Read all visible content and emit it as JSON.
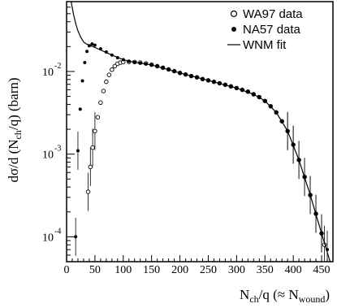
{
  "chart_data": {
    "type": "scatter",
    "x_axis": {
      "range": [
        0,
        470
      ],
      "ticks": [
        0,
        50,
        100,
        150,
        200,
        250,
        300,
        350,
        400,
        450
      ],
      "label_main": "N",
      "label_sub1": "ch",
      "label_mid": "/q (≈ N",
      "label_sub2": "wound",
      "label_end": ")"
    },
    "y_axis": {
      "scale": "log",
      "range": [
        5e-05,
        0.07
      ],
      "ticks": [
        {
          "base": "10",
          "exp": "-4",
          "value": 0.0001
        },
        {
          "base": "10",
          "exp": "-3",
          "value": 0.001
        },
        {
          "base": "10",
          "exp": "-2",
          "value": 0.01
        }
      ],
      "label_main": "dσ/d (N",
      "label_sub": "ch",
      "label_end": "/q) (barn)"
    },
    "legend": {
      "placement": "top-right",
      "entries": [
        {
          "label": "WA97 data",
          "marker": "open-circle"
        },
        {
          "label": "NA57 data",
          "marker": "filled-circle"
        },
        {
          "label": "WNM fit",
          "marker": "line"
        }
      ]
    },
    "series": [
      {
        "name": "WA97 data",
        "marker": "open-circle",
        "points": [
          [
            38,
            0.00035
          ],
          [
            42,
            0.0007
          ],
          [
            46,
            0.0012
          ],
          [
            50,
            0.0019
          ],
          [
            55,
            0.0028
          ],
          [
            60,
            0.0042
          ],
          [
            65,
            0.0058
          ],
          [
            70,
            0.0075
          ],
          [
            75,
            0.0091
          ],
          [
            80,
            0.0105
          ],
          [
            85,
            0.0116
          ],
          [
            90,
            0.0124
          ],
          [
            95,
            0.0128
          ],
          [
            100,
            0.013
          ],
          [
            110,
            0.0131
          ],
          [
            120,
            0.013
          ],
          [
            130,
            0.0128
          ],
          [
            140,
            0.0125
          ],
          [
            150,
            0.0121
          ],
          [
            160,
            0.0116
          ],
          [
            170,
            0.0111
          ],
          [
            180,
            0.0106
          ],
          [
            190,
            0.0101
          ],
          [
            200,
            0.0096
          ],
          [
            210,
            0.0092
          ],
          [
            220,
            0.0088
          ],
          [
            230,
            0.0085
          ],
          [
            240,
            0.0081
          ],
          [
            250,
            0.0078
          ],
          [
            260,
            0.0075
          ],
          [
            270,
            0.0072
          ],
          [
            280,
            0.0069
          ],
          [
            290,
            0.0066
          ],
          [
            300,
            0.0063
          ],
          [
            310,
            0.006
          ],
          [
            320,
            0.0057
          ],
          [
            330,
            0.0053
          ],
          [
            340,
            0.0049
          ],
          [
            350,
            0.0044
          ],
          [
            360,
            0.0038
          ],
          [
            370,
            0.0032
          ],
          [
            380,
            0.0025
          ],
          [
            390,
            0.0019
          ],
          [
            400,
            0.0013
          ],
          [
            410,
            0.00085
          ],
          [
            420,
            0.00053
          ],
          [
            430,
            0.00032
          ],
          [
            440,
            0.00019
          ],
          [
            450,
            0.00011
          ],
          [
            455,
            8e-05
          ]
        ]
      },
      {
        "name": "NA57 data",
        "marker": "filled-circle",
        "points": [
          [
            16,
            0.0001
          ],
          [
            20,
            0.0011
          ],
          [
            24,
            0.0035
          ],
          [
            28,
            0.0077
          ],
          [
            32,
            0.0128
          ],
          [
            36,
            0.0175
          ],
          [
            40,
            0.0205
          ],
          [
            45,
            0.0215
          ],
          [
            50,
            0.0208
          ],
          [
            60,
            0.0188
          ],
          [
            70,
            0.0172
          ],
          [
            80,
            0.0158
          ],
          [
            90,
            0.0147
          ],
          [
            100,
            0.0139
          ],
          [
            110,
            0.0133
          ],
          [
            120,
            0.0129
          ],
          [
            130,
            0.0126
          ],
          [
            140,
            0.0123
          ],
          [
            150,
            0.012
          ],
          [
            160,
            0.0116
          ],
          [
            170,
            0.0111
          ],
          [
            180,
            0.0106
          ],
          [
            190,
            0.0101
          ],
          [
            200,
            0.0096
          ],
          [
            210,
            0.0092
          ],
          [
            220,
            0.0088
          ],
          [
            230,
            0.0085
          ],
          [
            240,
            0.0081
          ],
          [
            250,
            0.0078
          ],
          [
            260,
            0.0075
          ],
          [
            270,
            0.0072
          ],
          [
            280,
            0.0069
          ],
          [
            290,
            0.0066
          ],
          [
            300,
            0.0063
          ],
          [
            310,
            0.006
          ],
          [
            320,
            0.0057
          ],
          [
            330,
            0.0053
          ],
          [
            340,
            0.0049
          ],
          [
            350,
            0.0044
          ],
          [
            360,
            0.0038
          ],
          [
            370,
            0.0032
          ],
          [
            380,
            0.0025
          ],
          [
            390,
            0.0019
          ],
          [
            400,
            0.0013
          ],
          [
            410,
            0.00085
          ],
          [
            420,
            0.00053
          ],
          [
            430,
            0.00032
          ],
          [
            440,
            0.00019
          ],
          [
            450,
            0.00011
          ],
          [
            460,
            7e-05
          ]
        ]
      },
      {
        "name": "WNM fit",
        "marker": "line",
        "points": [
          [
            8,
            0.07
          ],
          [
            12,
            0.05
          ],
          [
            16,
            0.038
          ],
          [
            20,
            0.031
          ],
          [
            25,
            0.026
          ],
          [
            30,
            0.0228
          ],
          [
            35,
            0.0215
          ],
          [
            40,
            0.0208
          ],
          [
            50,
            0.0195
          ],
          [
            60,
            0.0182
          ],
          [
            80,
            0.0158
          ],
          [
            100,
            0.0139
          ],
          [
            120,
            0.0129
          ],
          [
            150,
            0.012
          ],
          [
            200,
            0.0096
          ],
          [
            250,
            0.0078
          ],
          [
            300,
            0.0063
          ],
          [
            330,
            0.0053
          ],
          [
            350,
            0.0044
          ],
          [
            370,
            0.0032
          ],
          [
            390,
            0.0019
          ],
          [
            410,
            0.00085
          ],
          [
            430,
            0.00032
          ],
          [
            450,
            0.00011
          ],
          [
            465,
            5e-05
          ]
        ]
      }
    ]
  }
}
